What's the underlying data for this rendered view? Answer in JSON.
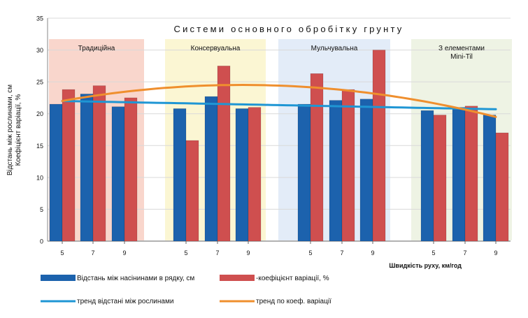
{
  "chart_data": {
    "type": "bar",
    "title": "Системи основного обробітку грунту",
    "ylabel_lines": [
      "Відстань між рослинами, см",
      "Коефіцієнт варіації, %"
    ],
    "xlabel": "Швидкість руху, км/год",
    "ylim": [
      0,
      35
    ],
    "yticks": [
      0,
      5,
      10,
      15,
      20,
      25,
      30,
      35
    ],
    "grid": true,
    "groups": [
      {
        "label": "Традиційна",
        "label_lines": [
          "Традиційна"
        ],
        "color": "#f9d6cc",
        "speeds": [
          "5",
          "7",
          "9"
        ],
        "distance": [
          21.5,
          23.1,
          21.1
        ],
        "variation": [
          23.8,
          24.4,
          22.5
        ]
      },
      {
        "label": "Консервуальна",
        "label_lines": [
          "Консервуальна"
        ],
        "color": "#fbf6d3",
        "speeds": [
          "5",
          "7",
          "9"
        ],
        "distance": [
          20.8,
          22.7,
          20.8
        ],
        "variation": [
          15.8,
          27.5,
          21.0
        ]
      },
      {
        "label": "Мульчувальна",
        "label_lines": [
          "Мульчувальна"
        ],
        "color": "#e3ecf8",
        "speeds": [
          "5",
          "7",
          "9"
        ],
        "distance": [
          21.5,
          22.1,
          22.3
        ],
        "variation": [
          26.3,
          23.8,
          30.0
        ]
      },
      {
        "label": "З елементами Mini-Til",
        "label_lines": [
          "З елементами",
          "Mini-Til"
        ],
        "color": "#eef3e4",
        "speeds": [
          "5",
          "7",
          "9"
        ],
        "distance": [
          20.5,
          21.0,
          19.8
        ],
        "variation": [
          19.8,
          21.2,
          17.0
        ]
      }
    ],
    "series": [
      {
        "name": "Відстань між насінинами в рядку, см",
        "color": "#1c62ad",
        "key": "distance"
      },
      {
        "name": "-коефіцієнт варіації, %",
        "color": "#cf4f4f",
        "key": "variation"
      }
    ],
    "trends": [
      {
        "name": "тренд відстані між рослинами",
        "color": "#1f96d4",
        "type": "linear",
        "start": 22.0,
        "end": 20.7
      },
      {
        "name": "тренд по коеф. варіації",
        "color": "#ef8f2e",
        "type": "quadratic",
        "start": 22.0,
        "peak": 24.5,
        "end": 19.5
      }
    ]
  }
}
